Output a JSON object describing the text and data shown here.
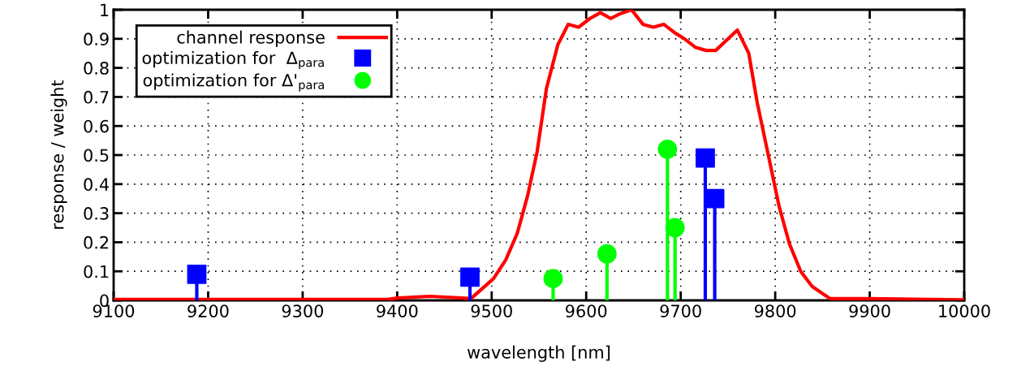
{
  "chart_data": {
    "type": "line",
    "xlabel": "wavelength [nm]",
    "ylabel": "response / weight",
    "xlim": [
      9100,
      10000
    ],
    "xticks": [
      9100,
      9200,
      9300,
      9400,
      9500,
      9600,
      9700,
      9800,
      9900,
      10000
    ],
    "ylim": [
      0,
      1
    ],
    "yticks": [
      0,
      0.1,
      0.2,
      0.3,
      0.4,
      0.5,
      0.6,
      0.7,
      0.8,
      0.9,
      1
    ],
    "grid": true,
    "legend": "top left",
    "series": [
      {
        "name": "channel response",
        "color": "#ff0000",
        "marker": "none",
        "line_style": "solid",
        "x": [
          9100,
          9200,
          9300,
          9390,
          9400,
          9435,
          9469,
          9478,
          9502,
          9515,
          9527,
          9538,
          9548,
          9558,
          9570,
          9581,
          9592,
          9604,
          9615,
          9626,
          9635,
          9648,
          9660,
          9671,
          9682,
          9694,
          9704,
          9716,
          9727,
          9737,
          9760,
          9772,
          9781,
          9793,
          9804,
          9815,
          9827,
          9839,
          9858,
          9899,
          10000
        ],
        "values": [
          0.003,
          0.003,
          0.003,
          0.003,
          0.008,
          0.014,
          0.008,
          0.006,
          0.075,
          0.14,
          0.23,
          0.36,
          0.51,
          0.73,
          0.88,
          0.95,
          0.94,
          0.97,
          0.99,
          0.97,
          0.985,
          1.0,
          0.95,
          0.94,
          0.95,
          0.92,
          0.9,
          0.87,
          0.86,
          0.86,
          0.93,
          0.85,
          0.68,
          0.495,
          0.325,
          0.195,
          0.1,
          0.048,
          0.006,
          0.006,
          0.002
        ]
      },
      {
        "name": "optimization for  Δ$_{para}$",
        "type": "lollipop",
        "color": "#0000ff",
        "marker": "square",
        "x": [
          9188,
          9477,
          9726,
          9736
        ],
        "values": [
          0.09,
          0.08,
          0.49,
          0.35
        ]
      },
      {
        "name": "optimization for Δ'$_{para}$",
        "type": "lollipop",
        "color": "#00ff00",
        "marker": "circle",
        "x": [
          9565,
          9622,
          9686,
          9694
        ],
        "values": [
          0.075,
          0.16,
          0.52,
          0.25
        ]
      }
    ]
  }
}
